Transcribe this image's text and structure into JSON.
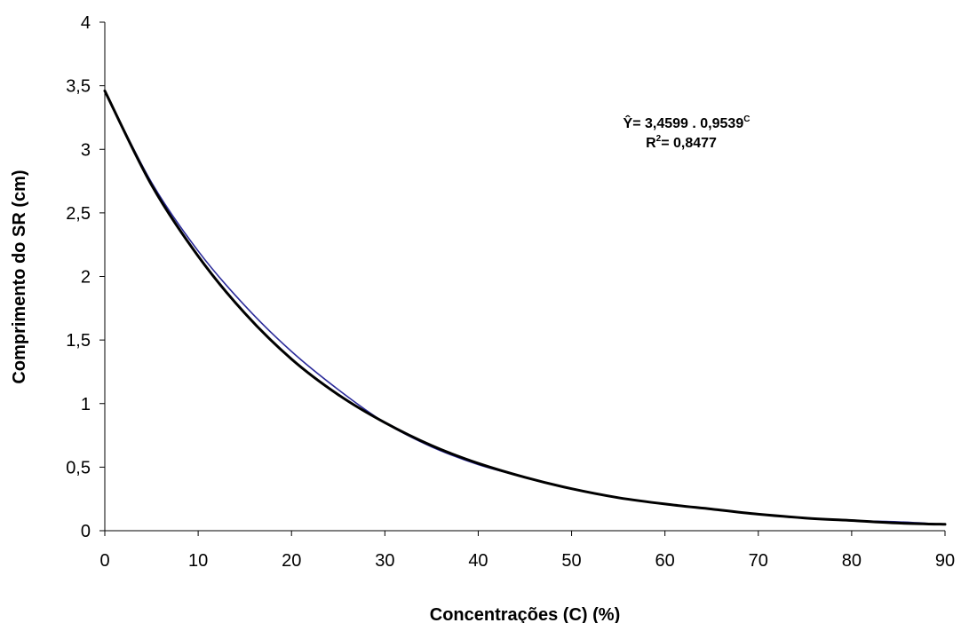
{
  "chart_data": {
    "type": "line",
    "title": "",
    "xlabel": "Concentrações (C) (%)",
    "ylabel": "Comprimento do SR (cm)",
    "xlim": [
      0,
      90
    ],
    "ylim": [
      0,
      4
    ],
    "x_ticks": [
      0,
      10,
      20,
      30,
      40,
      50,
      60,
      70,
      80,
      90
    ],
    "y_ticks": [
      0,
      0.5,
      1,
      1.5,
      2,
      2.5,
      3,
      3.5,
      4
    ],
    "x_tick_labels": [
      "0",
      "10",
      "20",
      "30",
      "40",
      "50",
      "60",
      "70",
      "80",
      "90"
    ],
    "y_tick_labels": [
      "0",
      "0,5",
      "1",
      "1,5",
      "2",
      "2,5",
      "3",
      "3,5",
      "4"
    ],
    "grid": false,
    "legend": "none",
    "annotation": {
      "equation_main": "Ŷ= 3,4599 . 0,9539",
      "equation_sup": "C",
      "r2_prefix": "R",
      "r2_sup": "2",
      "r2_value": "=  0,8477"
    },
    "series": [
      {
        "color": "#2b2b9a",
        "x": [
          0,
          5,
          10,
          15,
          20,
          25,
          30,
          35,
          40,
          45,
          50,
          55,
          60,
          65,
          70,
          75,
          80,
          85,
          90
        ],
        "y": [
          3.46,
          2.74,
          2.2,
          1.77,
          1.41,
          1.11,
          0.85,
          0.66,
          0.52,
          0.42,
          0.33,
          0.26,
          0.21,
          0.17,
          0.13,
          0.1,
          0.08,
          0.07,
          0.05
        ]
      },
      {
        "color": "#000000",
        "x": [
          0,
          5,
          10,
          15,
          20,
          25,
          30,
          35,
          40,
          45,
          50,
          55,
          60,
          65,
          70,
          75,
          80,
          85,
          90
        ],
        "y": [
          3.46,
          2.72,
          2.16,
          1.71,
          1.35,
          1.07,
          0.85,
          0.67,
          0.53,
          0.42,
          0.33,
          0.26,
          0.21,
          0.17,
          0.13,
          0.1,
          0.08,
          0.06,
          0.05
        ]
      }
    ]
  }
}
